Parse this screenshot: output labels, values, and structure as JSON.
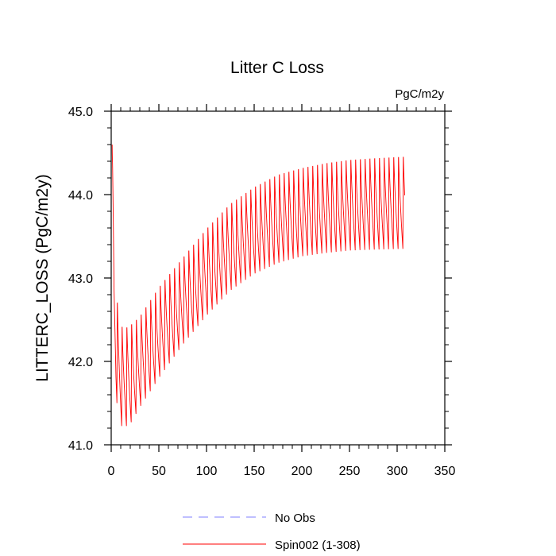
{
  "chart_data": {
    "type": "line",
    "title": "Litter C Loss",
    "units_label": "PgC/m2y",
    "ylabel": "LITTERC_LOSS  (PgC/m2y)",
    "xlabel": "",
    "xlim": [
      0,
      350
    ],
    "ylim": [
      41.0,
      45.0
    ],
    "x_ticks": [
      0,
      50,
      100,
      150,
      200,
      250,
      300,
      350
    ],
    "x_tick_labels": [
      "0",
      "50",
      "100",
      "150",
      "200",
      "250",
      "300",
      "350"
    ],
    "y_ticks": [
      41.0,
      42.0,
      43.0,
      44.0,
      45.0
    ],
    "y_tick_labels": [
      "41.0",
      "42.0",
      "43.0",
      "44.0",
      "45.0"
    ],
    "grid": false,
    "legend_position": "bottom-center",
    "series": [
      {
        "name": "No Obs",
        "color": "#7f7fff",
        "dash": "dashed",
        "x": [],
        "values": []
      },
      {
        "name": "Spin002 (1-308)",
        "color": "#ff0000",
        "dash": "solid",
        "x_start": 1,
        "x_end": 308,
        "cycle_period": 5,
        "envelope_years": [
          1,
          3,
          5,
          8,
          12,
          20,
          30,
          50,
          75,
          100,
          125,
          150,
          175,
          200,
          225,
          250,
          275,
          308
        ],
        "envelope_high": [
          44.65,
          43.3,
          42.85,
          42.7,
          42.45,
          42.5,
          42.6,
          42.95,
          43.3,
          43.65,
          43.95,
          44.15,
          44.3,
          44.38,
          44.44,
          44.48,
          44.5,
          44.52
        ],
        "envelope_low": [
          44.6,
          42.3,
          41.6,
          41.3,
          41.2,
          41.25,
          41.45,
          41.8,
          42.2,
          42.55,
          42.85,
          43.05,
          43.18,
          43.26,
          43.3,
          43.33,
          43.34,
          43.35
        ]
      }
    ]
  }
}
